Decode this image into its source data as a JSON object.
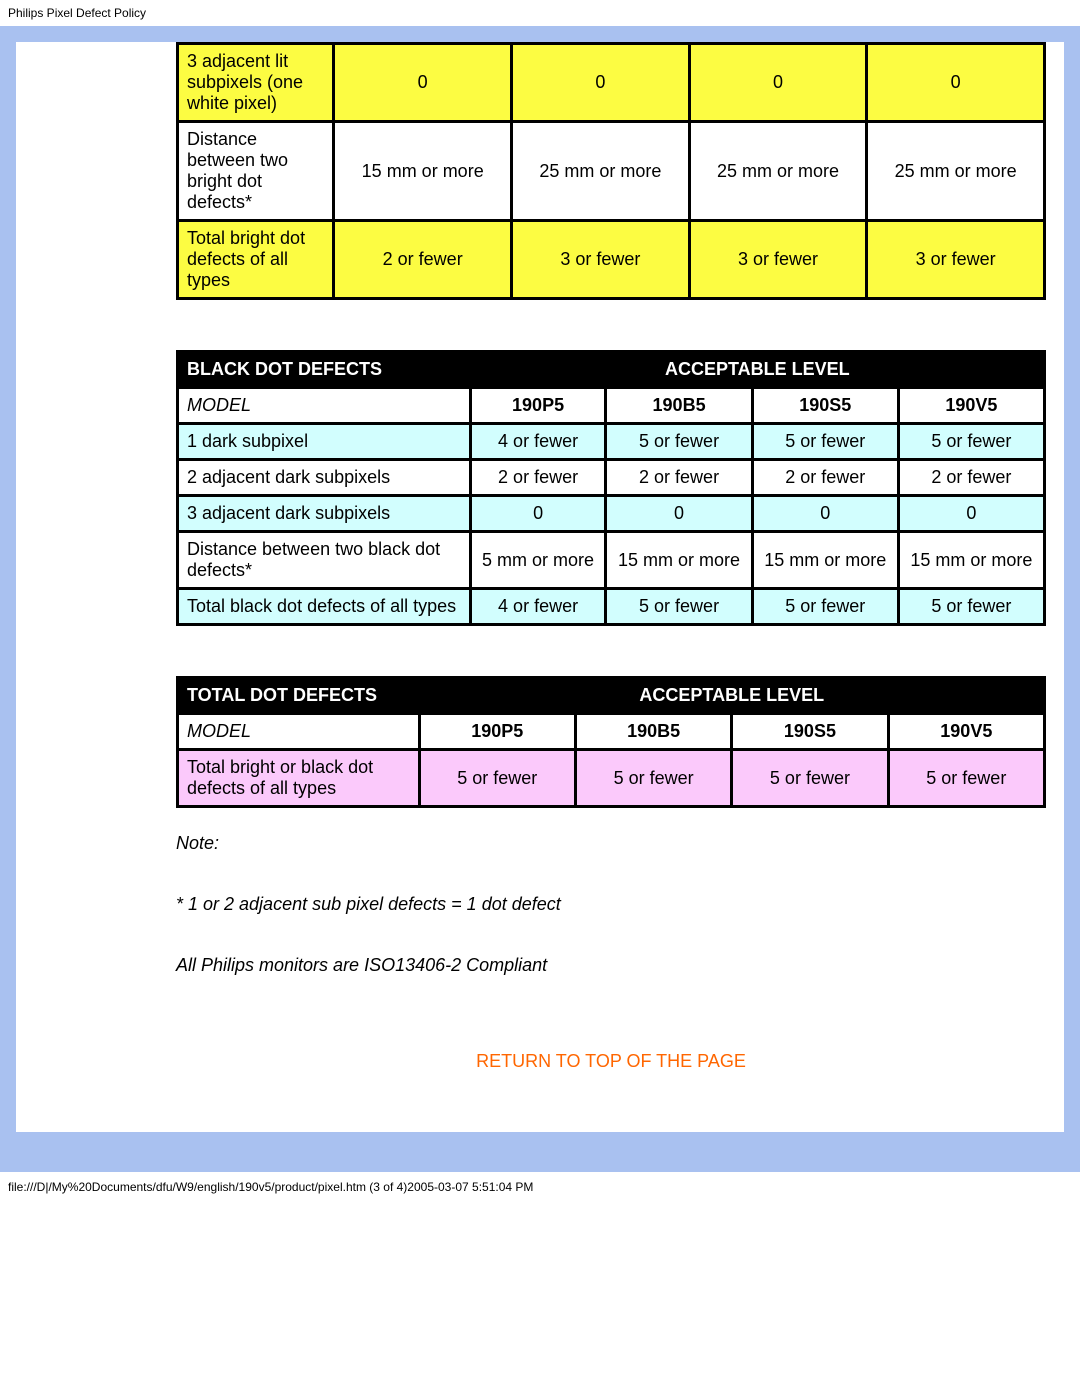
{
  "page_header": "Philips Pixel Defect Policy",
  "tables": {
    "bright": {
      "rows": [
        {
          "label": "3 adjacent lit subpixels (one white pixel)",
          "cells": [
            "0",
            "0",
            "0",
            "0"
          ],
          "hl": true
        },
        {
          "label": "Distance between two bright dot defects*",
          "cells": [
            "15 mm or more",
            "25 mm or more",
            "25 mm or more",
            "25 mm or more"
          ],
          "hl": false
        },
        {
          "label": "Total bright dot defects of all types",
          "cells": [
            "2 or fewer",
            "3 or fewer",
            "3 or fewer",
            "3 or fewer"
          ],
          "hl": true
        }
      ]
    },
    "black": {
      "title_left": "BLACK DOT DEFECTS",
      "title_right": "ACCEPTABLE LEVEL",
      "model_label": "MODEL",
      "models": [
        "190P5",
        "190B5",
        "190S5",
        "190V5"
      ],
      "rows": [
        {
          "label": "1 dark subpixel",
          "cells": [
            "4 or fewer",
            "5 or fewer",
            "5 or fewer",
            "5 or fewer"
          ],
          "hl": true
        },
        {
          "label": "2 adjacent dark subpixels",
          "cells": [
            "2 or fewer",
            "2 or fewer",
            "2 or fewer",
            "2 or fewer"
          ],
          "hl": false
        },
        {
          "label": "3 adjacent dark subpixels",
          "cells": [
            "0",
            "0",
            "0",
            "0"
          ],
          "hl": true
        },
        {
          "label": "Distance between two black dot defects*",
          "cells": [
            "5 mm or more",
            "15 mm or more",
            "15 mm or more",
            "15 mm or more"
          ],
          "hl": false
        },
        {
          "label": "Total black dot defects of all types",
          "cells": [
            "4 or fewer",
            "5 or fewer",
            "5 or fewer",
            "5 or fewer"
          ],
          "hl": true
        }
      ]
    },
    "total": {
      "title_left": "TOTAL DOT DEFECTS",
      "title_right": "ACCEPTABLE LEVEL",
      "model_label": "MODEL",
      "models": [
        "190P5",
        "190B5",
        "190S5",
        "190V5"
      ],
      "rows": [
        {
          "label": "Total bright or black dot defects of all types",
          "cells": [
            "5 or fewer",
            "5 or fewer",
            "5 or fewer",
            "5 or fewer"
          ],
          "hl": true
        }
      ]
    }
  },
  "notes": {
    "heading": "Note:",
    "line1": "* 1 or 2 adjacent sub pixel defects = 1 dot defect",
    "line2": "All Philips monitors are ISO13406-2 Compliant"
  },
  "return_link": "RETURN TO TOP OF THE PAGE",
  "footer_path": "file:///D|/My%20Documents/dfu/W9/english/190v5/product/pixel.htm (3 of 4)2005-03-07 5:51:04 PM",
  "colors": {
    "frame": "#a9c1f0",
    "yellow": "#fcfc42",
    "cyan": "#d2fefe",
    "pink": "#fbc9fb",
    "link": "#ff6600",
    "black": "#000000",
    "white": "#ffffff"
  }
}
